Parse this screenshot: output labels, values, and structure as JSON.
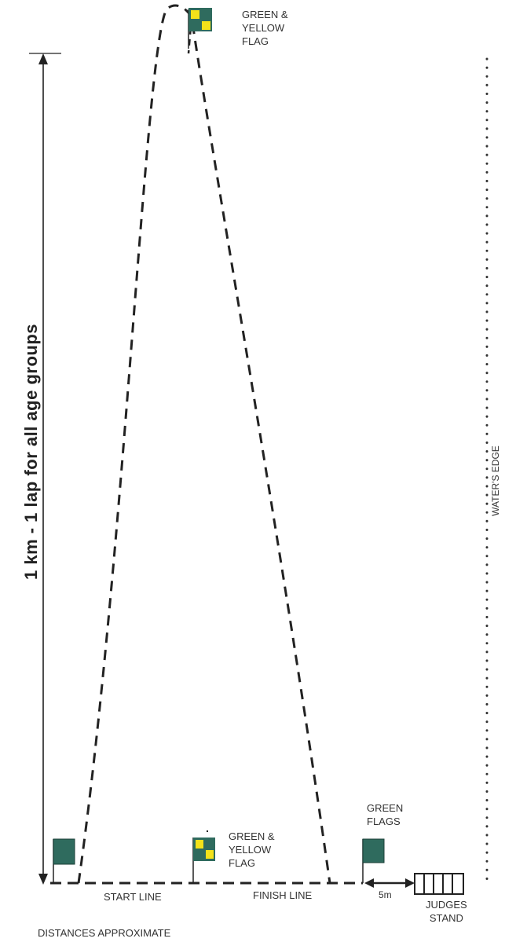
{
  "distance_label": "1 km - 1 lap for all age groups",
  "water_edge_label": "WATER'S EDGE",
  "top_flag": {
    "line1": "GREEN &",
    "line2": "YELLOW",
    "line3": "FLAG"
  },
  "bottom_flag": {
    "line1": "GREEN &",
    "line2": "YELLOW",
    "line3": "FLAG"
  },
  "green_flags": {
    "line1": "GREEN",
    "line2": "FLAGS"
  },
  "start_line": "START LINE",
  "finish_line": "FINISH LINE",
  "offset_label": "5m",
  "judges_stand": {
    "line1": "JUDGES",
    "line2": "STAND"
  },
  "footnote": "DISTANCES APPROXIMATE",
  "colors": {
    "flag_green": "#2f6b5e",
    "flag_yellow": "#f4e21a",
    "line": "#222222"
  }
}
